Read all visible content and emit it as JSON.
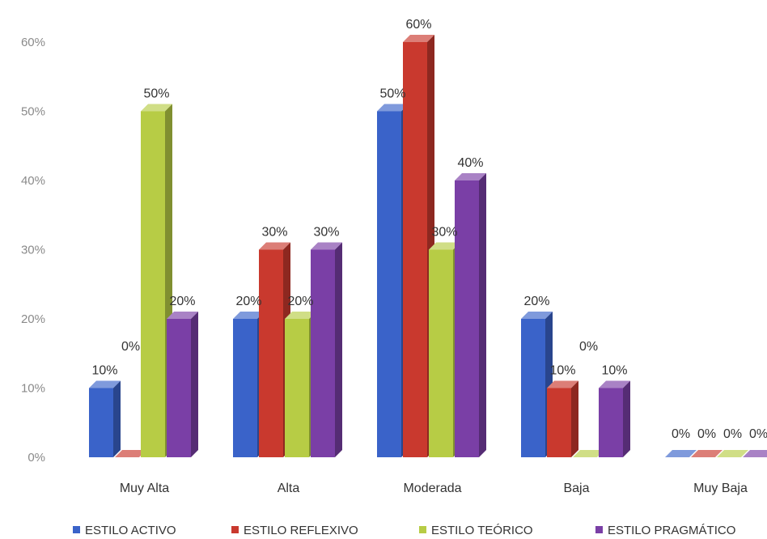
{
  "chart_data": {
    "type": "bar",
    "categories": [
      "Muy Alta",
      "Alta",
      "Moderada",
      "Baja",
      "Muy Baja"
    ],
    "series": [
      {
        "name": "ESTILO ACTIVO",
        "values": [
          10,
          20,
          50,
          20,
          0
        ],
        "labels": [
          "10%",
          "20%",
          "50%",
          "20%",
          "0%"
        ],
        "color": "#3A63C9"
      },
      {
        "name": "ESTILO REFLEXIVO",
        "values": [
          0,
          30,
          60,
          10,
          0
        ],
        "labels": [
          "0%",
          "30%",
          "60%",
          "10%",
          "0%"
        ],
        "color": "#C9392E"
      },
      {
        "name": "ESTILO TEÓRICO",
        "values": [
          50,
          20,
          30,
          0,
          0
        ],
        "labels": [
          "50%",
          "20%",
          "30%",
          "0%",
          "0%"
        ],
        "color": "#B7CC45"
      },
      {
        "name": "ESTILO PRAGMÁTICO",
        "values": [
          20,
          30,
          40,
          10,
          0
        ],
        "labels": [
          "20%",
          "30%",
          "40%",
          "10%",
          "0%"
        ],
        "color": "#7A3FA6"
      }
    ],
    "y_ticks": [
      "0%",
      "10%",
      "20%",
      "30%",
      "40%",
      "50%",
      "60%"
    ],
    "ylim": [
      0,
      60
    ],
    "unit": "%",
    "grid": false,
    "legend": "bottom",
    "style": "3d-clustered-column"
  }
}
